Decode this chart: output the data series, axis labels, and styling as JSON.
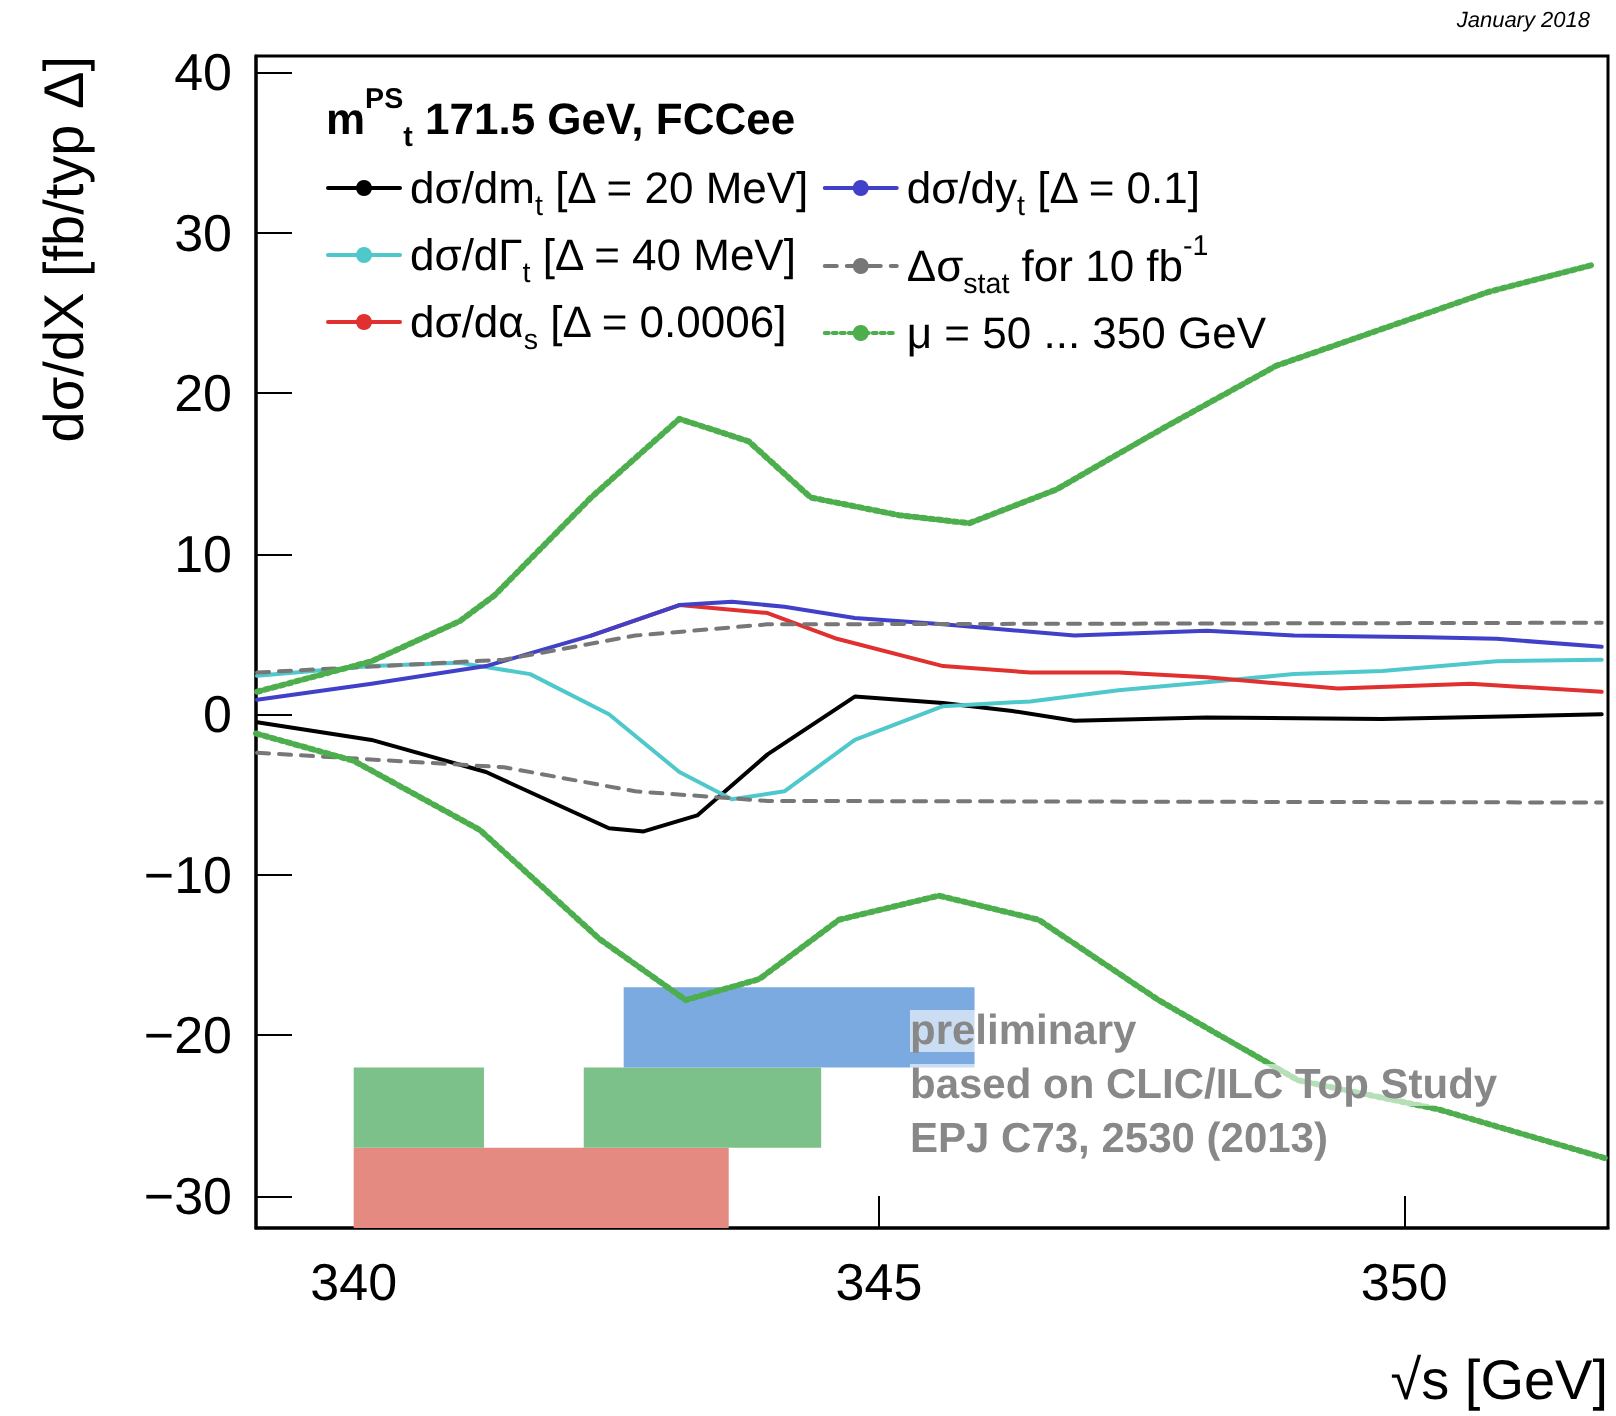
{
  "chart_data": {
    "type": "line",
    "legend_title": "m$^{PS}$$_{t}$ 171.5 GeV, FCCee",
    "subtitle": "January 2018",
    "xlabel": "√s [GeV]",
    "ylabel": "dσ/dX [fb/typ Δ]",
    "xlim": [
      339.07,
      351.94
    ],
    "xticks": [
      340,
      345,
      350
    ],
    "ylim": [
      -32,
      41
    ],
    "yticks": [
      -30,
      -20,
      -10,
      0,
      10,
      20,
      30,
      40
    ],
    "grid": false,
    "legend": "top left",
    "marker": "none",
    "series": [
      {
        "name": "dσ/dm$_{t}$ [Δ = 20 MeV]",
        "color": "#000000",
        "line_style": "solid",
        "x": [
          339.08,
          340.17,
          341.26,
          342.43,
          342.76,
          343.27,
          343.94,
          344.77,
          345.61,
          346.27,
          346.86,
          348.12,
          349.79,
          351.88
        ],
        "values": [
          -0.5,
          -1.6,
          -3.6,
          -7.1,
          -7.3,
          -6.3,
          -2.5,
          1.1,
          0.7,
          0.2,
          -0.4,
          -0.2,
          -0.3,
          0
        ]
      },
      {
        "name": "dσ/dΓ$_{t}$ [Δ = 40 MeV]",
        "color": "#4fc8cc",
        "line_style": "solid",
        "x": [
          339.08,
          340.17,
          341.01,
          341.68,
          342.43,
          343.1,
          343.6,
          344.1,
          344.77,
          345.61,
          346.44,
          347.28,
          348.12,
          348.95,
          349.79,
          350.88,
          351.88
        ],
        "values": [
          2.4,
          3.0,
          3.2,
          2.5,
          0,
          -3.6,
          -5.3,
          -4.8,
          -1.6,
          0.5,
          0.8,
          1.5,
          2.0,
          2.5,
          2.7,
          3.3,
          3.4
        ]
      },
      {
        "name": "dσ/dα$_{s}$ [Δ = 0.0006]",
        "color": "#e03030",
        "line_style": "solid",
        "x": [
          342.26,
          343.1,
          343.94,
          344.6,
          345.61,
          346.44,
          347.28,
          348.12,
          349.37,
          350.63,
          351.88
        ],
        "values": [
          4.9,
          6.8,
          6.3,
          4.7,
          3.0,
          2.6,
          2.6,
          2.3,
          1.6,
          1.9,
          1.4
        ]
      },
      {
        "name": "dσ/dy$_{t}$ [Δ = 0.1]",
        "color": "#4040c8",
        "line_style": "solid",
        "x": [
          339.08,
          340.17,
          341.26,
          342.26,
          343.1,
          343.6,
          344.1,
          344.77,
          345.61,
          346.86,
          348.12,
          348.95,
          350.21,
          350.88,
          351.88
        ],
        "values": [
          0.9,
          1.9,
          3.0,
          4.9,
          6.8,
          7.0,
          6.7,
          6.0,
          5.6,
          4.9,
          5.2,
          4.9,
          4.8,
          4.7,
          4.2
        ]
      },
      {
        "name": "Δσ$_{stat}$ for 10 fb$^{-1}$",
        "color": "#777777",
        "line_style": "dashed",
        "x": [
          339.08,
          341.43,
          342.68,
          343.94,
          351.88
        ],
        "values": [
          2.6,
          3.4,
          4.9,
          5.6,
          5.7
        ]
      },
      {
        "name": "μ = 50 ... 350 GeV",
        "color": "#4cae4c",
        "line_style": "dotted",
        "x": [
          339.08,
          340.17,
          341.01,
          341.34,
          342.26,
          343.1,
          343.76,
          344.35,
          345.19,
          345.86,
          346.69,
          347.7,
          348.78,
          350.8,
          351.8
        ],
        "values": [
          1.4,
          3.3,
          5.8,
          7.4,
          13.5,
          18.4,
          17.0,
          13.5,
          12.4,
          11.9,
          14.0,
          17.8,
          21.7,
          26.3,
          28.0
        ]
      },
      {
        "color": "#777777",
        "line_style": "dashed",
        "x": [
          339.08,
          341.43,
          342.68,
          343.94,
          351.88
        ],
        "values": [
          -2.4,
          -3.3,
          -4.8,
          -5.4,
          -5.5
        ]
      },
      {
        "color": "#4cae4c",
        "line_style": "dotted",
        "x": [
          339.07,
          340.0,
          341.2,
          342.34,
          343.16,
          343.86,
          344.62,
          345.57,
          346.52,
          347.66,
          348.99,
          350.32,
          351.94
        ],
        "values": [
          -1.2,
          -2.9,
          -7.2,
          -14,
          -17.8,
          -16.5,
          -12.8,
          -11.3,
          -12.8,
          -17.8,
          -22.8,
          -24.6,
          -27.7
        ]
      }
    ],
    "bands": [
      {
        "axis": "x",
        "from": 340.0,
        "to": 343.57,
        "color": "#e48a80"
      },
      {
        "axis": "x",
        "from": 340.0,
        "to": 341.24,
        "color": "#7cc08a"
      },
      {
        "axis": "x",
        "from": 342.19,
        "to": 344.45,
        "color": "#7cc08a"
      },
      {
        "axis": "x",
        "from": 342.57,
        "to": 345.91,
        "color": "#7aaae0"
      }
    ],
    "annotations": [
      "preliminary",
      "based on CLIC/ILC Top Study",
      "EPJ C73, 2530 (2013)"
    ]
  }
}
